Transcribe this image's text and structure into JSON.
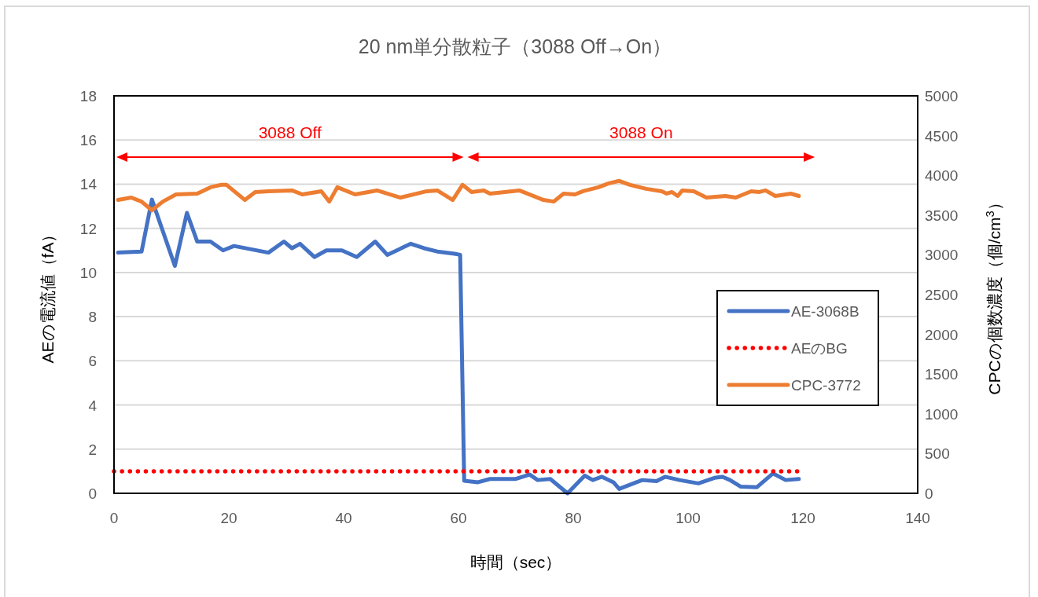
{
  "chart_data": {
    "type": "line",
    "title": "20 nm単分散粒子（3088 Off→On）",
    "xlabel": "時間（sec）",
    "ylabel": "AEの電流値（fA）",
    "y2label": "CPCの個数濃度（個/cm$^{3}$）",
    "xlim": [
      0,
      140
    ],
    "xticks": [
      0,
      20,
      40,
      60,
      80,
      100,
      120,
      140
    ],
    "ylim": [
      0,
      18
    ],
    "yticks": [
      0,
      2,
      4,
      6,
      8,
      10,
      12,
      14,
      16,
      18
    ],
    "y2lim": [
      0,
      5000
    ],
    "y2ticks": [
      0,
      500,
      1000,
      1500,
      2000,
      2500,
      3000,
      3500,
      4000,
      4500,
      5000
    ],
    "grid": "y",
    "legend": "right",
    "marker": "none",
    "annotations": [
      "3088 Off",
      "3088 On"
    ],
    "series": [
      {
        "name": "AE-3068B",
        "color": "#4472c4",
        "line_style": "solid",
        "x": [
          0.7,
          4.8,
          6.6,
          10.6,
          12.7,
          14.5,
          16.8,
          19,
          20.9,
          26.9,
          29.6,
          31,
          32.4,
          34.9,
          37,
          39.7,
          42.3,
          45.5,
          47.6,
          51.7,
          54,
          56.3,
          59.3,
          60.3,
          61,
          63.4,
          65.5,
          70,
          72.4,
          73.8,
          76,
          79,
          82,
          83.4,
          85,
          87,
          88,
          92,
          94.5,
          96,
          98.5,
          101.8,
          104.6,
          106,
          107.3,
          109.2,
          112,
          114.8,
          117,
          119.3
        ],
        "values": [
          10.9,
          10.95,
          13.3,
          10.3,
          12.7,
          11.4,
          11.4,
          11.0,
          11.2,
          10.9,
          11.4,
          11.1,
          11.3,
          10.7,
          11.0,
          11.0,
          10.7,
          11.4,
          10.8,
          11.3,
          11.1,
          10.95,
          10.85,
          10.8,
          0.57,
          0.5,
          0.65,
          0.65,
          0.85,
          0.6,
          0.65,
          0,
          0.8,
          0.6,
          0.75,
          0.5,
          0.2,
          0.6,
          0.55,
          0.75,
          0.6,
          0.45,
          0.7,
          0.75,
          0.6,
          0.3,
          0.28,
          0.9,
          0.6,
          0.65
        ]
      },
      {
        "name": "AEのBG",
        "color": "#ff0000",
        "line_style": "dotted",
        "x": [
          0,
          119.3
        ],
        "values": [
          1,
          1
        ]
      },
      {
        "name": "CPC-3772",
        "color": "#ed7d31",
        "line_style": "solid",
        "axis": "y2",
        "x": [
          0.7,
          3,
          4.8,
          6.6,
          8.5,
          10.8,
          14.5,
          16.8,
          18.6,
          19.6,
          22.8,
          24.6,
          26.9,
          31,
          32.8,
          36.1,
          37.5,
          38.9,
          42,
          45.8,
          49.9,
          54.5,
          56.3,
          59,
          60.7,
          62.3,
          64.4,
          65.5,
          70.6,
          74.8,
          76.6,
          78.3,
          80.3,
          81.7,
          84.4,
          86.2,
          88,
          89.9,
          92.7,
          95.4,
          96.3,
          97.2,
          98.2,
          99,
          101,
          103.2,
          106.5,
          108.3,
          111,
          112.4,
          113.5,
          115.2,
          117.9,
          119.3
        ],
        "values": [
          3690,
          3720,
          3670,
          3560,
          3670,
          3760,
          3770,
          3850,
          3880,
          3880,
          3690,
          3790,
          3800,
          3810,
          3760,
          3800,
          3670,
          3850,
          3760,
          3810,
          3720,
          3800,
          3810,
          3690,
          3880,
          3790,
          3810,
          3770,
          3810,
          3690,
          3670,
          3770,
          3760,
          3800,
          3850,
          3900,
          3930,
          3880,
          3830,
          3800,
          3770,
          3790,
          3740,
          3810,
          3800,
          3720,
          3740,
          3720,
          3800,
          3790,
          3810,
          3740,
          3770,
          3740
        ]
      }
    ]
  }
}
